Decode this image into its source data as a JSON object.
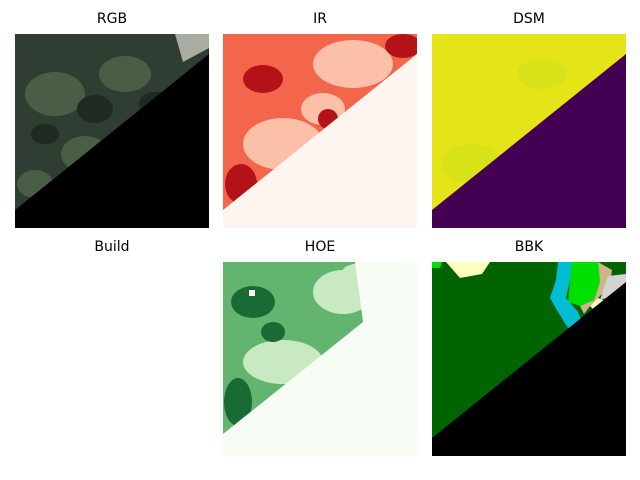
{
  "figure": {
    "panels": [
      {
        "title": "RGB",
        "kind": "image",
        "palette": "rgb-aerial"
      },
      {
        "title": "IR",
        "kind": "image",
        "palette": "Reds"
      },
      {
        "title": "DSM",
        "kind": "image",
        "palette": "viridis"
      },
      {
        "title": "Build",
        "kind": "empty",
        "palette": "none"
      },
      {
        "title": "HOE",
        "kind": "image",
        "palette": "Greens"
      },
      {
        "title": "BBK",
        "kind": "image",
        "palette": "categorical"
      }
    ]
  },
  "chart_data": {
    "type": "heatmap",
    "layout": "2x3 grid of image panels",
    "axes": "off",
    "panels": [
      "RGB",
      "IR",
      "DSM",
      "Build",
      "HOE",
      "BBK"
    ]
  },
  "colors": {
    "black": "#000000",
    "ir_dark": "#b31218",
    "ir_mid": "#f4664c",
    "ir_light": "#fcc0a8",
    "ir_bg": "#fff5f0",
    "dsm_high": "#e5e419",
    "dsm_mid": "#d8e219",
    "dsm_low": "#440154",
    "hoe_dark": "#1a6b33",
    "hoe_mid": "#63b46f",
    "hoe_light": "#c8e9c1",
    "hoe_bg": "#f7fcf5",
    "bbk_forest": "#006400",
    "bbk_cyan": "#00bcd4",
    "bbk_lime": "#00e000",
    "bbk_tan": "#d2b48c",
    "bbk_cream": "#ffffc0",
    "bbk_gray": "#d3d3d3",
    "rgb_forest": "#2f3d33",
    "rgb_canopy": "#4a5e45",
    "rgb_shadow": "#1f2a22"
  }
}
